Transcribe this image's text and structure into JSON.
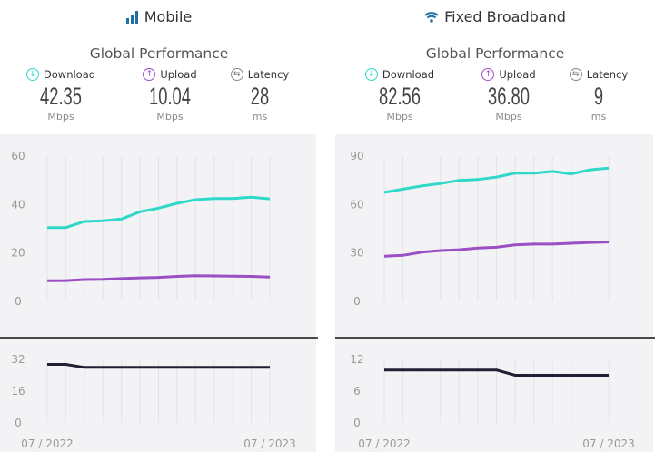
{
  "colors": {
    "download": "#2fd8c8",
    "upload": "#9b4fc4",
    "latency": "#1f2033",
    "icon": "#1f6fa3"
  },
  "panels": [
    {
      "title": "Mobile",
      "icon": "signal-bars-icon",
      "subtitle": "Global Performance",
      "metrics": [
        {
          "label": "Download",
          "value": "42.35",
          "unit": "Mbps"
        },
        {
          "label": "Upload",
          "value": "10.04",
          "unit": "Mbps"
        },
        {
          "label": "Latency",
          "value": "28",
          "unit": "ms"
        }
      ]
    },
    {
      "title": "Fixed Broadband",
      "icon": "wifi-icon",
      "subtitle": "Global Performance",
      "metrics": [
        {
          "label": "Download",
          "value": "82.56",
          "unit": "Mbps"
        },
        {
          "label": "Upload",
          "value": "36.80",
          "unit": "Mbps"
        },
        {
          "label": "Latency",
          "value": "9",
          "unit": "ms"
        }
      ]
    }
  ],
  "chart_data": [
    {
      "type": "line",
      "panel": "Mobile",
      "x_start": "07 / 2022",
      "x_end": "07 / 2023",
      "ylim": [
        0,
        60
      ],
      "yticks": [
        "0",
        "20",
        "40",
        "60"
      ],
      "grid": "vertical",
      "series": [
        {
          "name": "Download",
          "values": [
            30.5,
            30.5,
            33,
            33.3,
            34,
            37,
            38.5,
            40.5,
            42,
            42.5,
            42.5,
            43,
            42.35
          ]
        },
        {
          "name": "Upload",
          "values": [
            8.5,
            8.6,
            9,
            9.1,
            9.4,
            9.7,
            9.9,
            10.3,
            10.6,
            10.5,
            10.4,
            10.3,
            10.04
          ]
        }
      ]
    },
    {
      "type": "line",
      "panel": "Mobile",
      "ylim": [
        0,
        32
      ],
      "yticks": [
        "0",
        "16",
        "32"
      ],
      "grid": "vertical",
      "series": [
        {
          "name": "Latency",
          "values": [
            29.5,
            29.5,
            28,
            28,
            28,
            28,
            28,
            28,
            28,
            28,
            28,
            28,
            28
          ]
        }
      ]
    },
    {
      "type": "line",
      "panel": "Fixed Broadband",
      "x_start": "07 / 2022",
      "x_end": "07 / 2023",
      "ylim": [
        0,
        90
      ],
      "yticks": [
        "0",
        "30",
        "60",
        "90"
      ],
      "grid": "vertical",
      "series": [
        {
          "name": "Download",
          "values": [
            67.5,
            69.5,
            71.5,
            73,
            75,
            75.5,
            77,
            79.5,
            79.5,
            80.5,
            79,
            81.5,
            82.56
          ]
        },
        {
          "name": "Upload",
          "values": [
            28,
            28.5,
            30.5,
            31.5,
            32,
            33,
            33.5,
            35,
            35.5,
            35.5,
            36,
            36.5,
            36.8
          ]
        }
      ]
    },
    {
      "type": "line",
      "panel": "Fixed Broadband",
      "ylim": [
        0,
        12
      ],
      "yticks": [
        "0",
        "6",
        "12"
      ],
      "grid": "vertical",
      "series": [
        {
          "name": "Latency",
          "values": [
            10,
            10,
            10,
            10,
            10,
            10,
            10,
            9,
            9,
            9,
            9,
            9,
            9
          ]
        }
      ]
    }
  ]
}
